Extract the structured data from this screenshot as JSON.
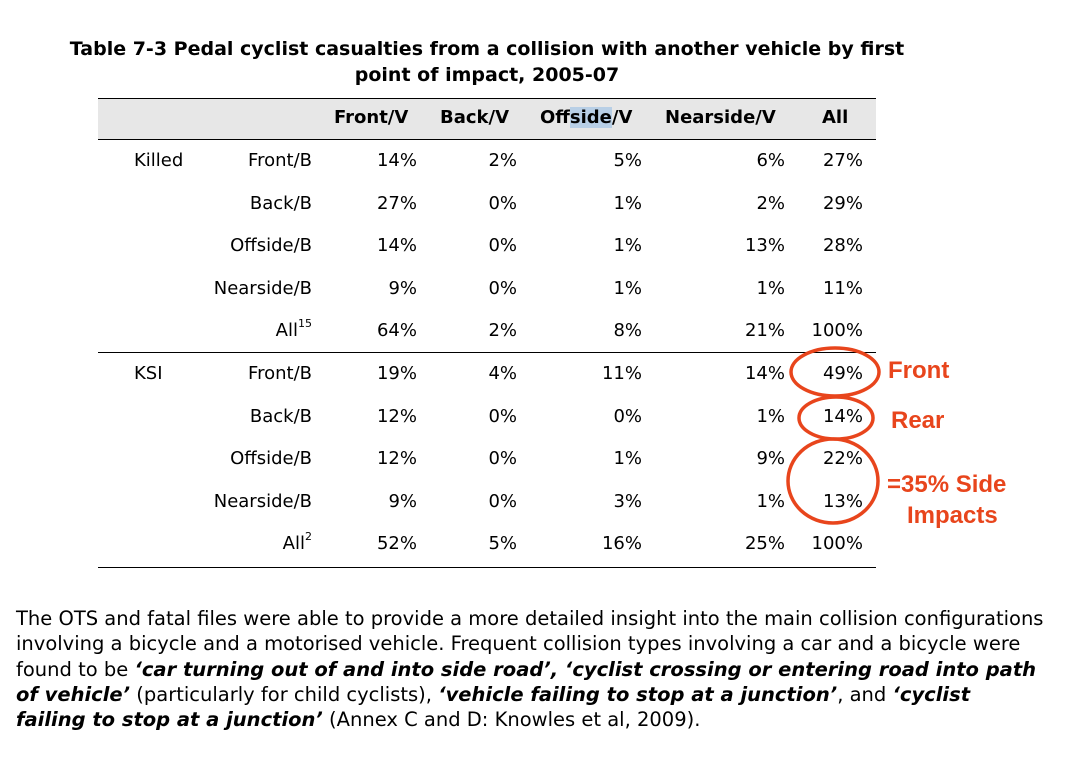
{
  "title": {
    "line1": "Table 7-3  Pedal cyclist casualties from a collision with another vehicle by first",
    "line2": "point of impact, 2005-07"
  },
  "table": {
    "headers": {
      "front_v": "Front/V",
      "back_v": "Back/V",
      "offside_pre": "Off",
      "offside_sel": "side",
      "offside_post": "/V",
      "nearside_v": "Nearside/V",
      "all": "All"
    },
    "groups": [
      {
        "label": "Killed",
        "rows": [
          {
            "label": "Front/B",
            "sup": "",
            "values": [
              "14%",
              "2%",
              "5%",
              "6%",
              "27%"
            ]
          },
          {
            "label": "Back/B",
            "sup": "",
            "values": [
              "27%",
              "0%",
              "1%",
              "2%",
              "29%"
            ]
          },
          {
            "label": "Offside/B",
            "sup": "",
            "values": [
              "14%",
              "0%",
              "1%",
              "13%",
              "28%"
            ]
          },
          {
            "label": "Nearside/B",
            "sup": "",
            "values": [
              "9%",
              "0%",
              "1%",
              "1%",
              "11%"
            ]
          },
          {
            "label": "All",
            "sup": "15",
            "values": [
              "64%",
              "2%",
              "8%",
              "21%",
              "100%"
            ]
          }
        ]
      },
      {
        "label": "KSI",
        "rows": [
          {
            "label": "Front/B",
            "sup": "",
            "values": [
              "19%",
              "4%",
              "11%",
              "14%",
              "49%"
            ]
          },
          {
            "label": "Back/B",
            "sup": "",
            "values": [
              "12%",
              "0%",
              "0%",
              "1%",
              "14%"
            ]
          },
          {
            "label": "Offside/B",
            "sup": "",
            "values": [
              "12%",
              "0%",
              "1%",
              "9%",
              "22%"
            ]
          },
          {
            "label": "Nearside/B",
            "sup": "",
            "values": [
              "9%",
              "0%",
              "3%",
              "1%",
              "13%"
            ]
          },
          {
            "label": "All",
            "sup": "2",
            "values": [
              "52%",
              "5%",
              "16%",
              "25%",
              "100%"
            ]
          }
        ]
      }
    ]
  },
  "annotations": {
    "front": "Front",
    "rear": "Rear",
    "side_line1": "=35% Side",
    "side_line2": "Impacts",
    "color": "#e8451c"
  },
  "paragraph": {
    "t1": "The OTS and fatal files were able to provide a more detailed insight into the main collision configurations involving a bicycle and a motorised vehicle.  Frequent collision types involving a car and a bicycle were found to be ",
    "b1": "‘car turning out of and into side road’, ‘cyclist crossing or entering road into path of vehicle’",
    "t2": " (particularly for child cyclists), ",
    "b2": "‘vehicle failing to stop at a junction’",
    "t3": ", and ",
    "b3": "‘cyclist failing to stop at a junction’",
    "t4": " (Annex C and D: Knowles et al, 2009)."
  }
}
